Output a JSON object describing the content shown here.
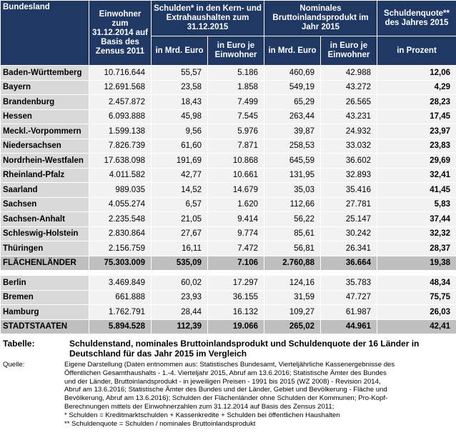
{
  "table": {
    "header": {
      "bundesland": "Bundesland",
      "einwohner": "Einwohner zum 31.12.2014 auf Basis des Zensus 2011",
      "schulden": "Schulden* in den Kern- und Extrahaushalten zum 31.12.2015",
      "schulden_sub": [
        "in Mrd. Euro",
        "in Euro je Einwohner"
      ],
      "bip": "Nominales Bruttoinlandsprodukt im Jahr 2015",
      "bip_sub": [
        "in Mrd. Euro",
        "in Euro je Einwohner"
      ],
      "quote": "Schuldenquote** des Jahres 2015",
      "quote_sub": "in Prozent"
    },
    "groups": [
      {
        "rows": [
          [
            "Baden-Württemberg",
            "10.716.644",
            "55,57",
            "5.186",
            "460,69",
            "42.988",
            "12,06"
          ],
          [
            "Bayern",
            "12.691.568",
            "23,58",
            "1.858",
            "549,19",
            "43.272",
            "4,29"
          ],
          [
            "Brandenburg",
            "2.457.872",
            "18,43",
            "7.499",
            "65,29",
            "26.565",
            "28,23"
          ],
          [
            "Hessen",
            "6.093.888",
            "45,98",
            "7.545",
            "263,44",
            "43.231",
            "17,45"
          ],
          [
            "Meckl.-Vorpommern",
            "1.599.138",
            "9,56",
            "5.976",
            "39,87",
            "24.932",
            "23,97"
          ],
          [
            "Niedersachsen",
            "7.826.739",
            "61,60",
            "7.871",
            "258,53",
            "33.032",
            "23,83"
          ],
          [
            "Nordrhein-Westfalen",
            "17.638.098",
            "191,69",
            "10.868",
            "645,59",
            "36.602",
            "29,69"
          ],
          [
            "Rheinland-Pfalz",
            "4.011.582",
            "42,77",
            "10.661",
            "131,95",
            "32.893",
            "32,41"
          ],
          [
            "Saarland",
            "989.035",
            "14,52",
            "14.679",
            "35,03",
            "35.416",
            "41,45"
          ],
          [
            "Sachsen",
            "4.055.274",
            "6,57",
            "1.620",
            "112,66",
            "27.781",
            "5,83"
          ],
          [
            "Sachsen-Anhalt",
            "2.235.548",
            "21,05",
            "9.414",
            "56,22",
            "25.147",
            "37,44"
          ],
          [
            "Schleswig-Holstein",
            "2.830.864",
            "27,67",
            "9.774",
            "85,61",
            "30.242",
            "32,32"
          ],
          [
            "Thüringen",
            "2.156.759",
            "16,11",
            "7.472",
            "56,81",
            "26.341",
            "28,37"
          ]
        ],
        "total": [
          "FLÄCHENLÄNDER",
          "75.303.009",
          "535,09",
          "7.106",
          "2.760,88",
          "36.664",
          "19,38"
        ]
      },
      {
        "rows": [
          [
            "Berlin",
            "3.469.849",
            "60,02",
            "17.297",
            "124,16",
            "35.783",
            "48,34"
          ],
          [
            "Bremen",
            "661.888",
            "23,93",
            "36.155",
            "31,59",
            "47.727",
            "75,75"
          ],
          [
            "Hamburg",
            "1.762.791",
            "28,44",
            "16.132",
            "109,27",
            "61.987",
            "26,03"
          ]
        ],
        "total": [
          "STADTSTAATEN",
          "5.894.528",
          "112,39",
          "19.066",
          "265,02",
          "44.961",
          "42,41"
        ]
      }
    ]
  },
  "caption": {
    "label": "Tabelle:",
    "text": "Schuldenstand, nominales Bruttoinlandsprodukt und Schuldenquote der 16 Länder in Deutschland für das Jahr 2015 im Vergleich"
  },
  "source": {
    "label": "Quelle:",
    "lines": [
      "Eigene Darstellung (Daten entnommen aus: Statistisches Bundesamt, Vierteljährliche Kassenergebnisse des",
      "Öffentlichen Gesamthaushalts - 1.-4. Vierteljahr 2015, Abruf am 13.6.2016; Statistische Ämter des Bundes",
      "und der Länder, Bruttoinlandsprodukt - in jeweiligen Preisen - 1991 bis 2015 (WZ 2008) - Revision 2014,",
      "Abruf am 13.6.2016; Statistische Ämter des Bundes und der Länder, Gebiet und Bevölkerung - Fläche und",
      "Bevölkerung, Abruf am 13.6.2016); Schulden der Flächenländer ohne Schulden der Kommunen; Pro-Kopf-",
      "Berechnungen mittels der Einwohnerzahlen zum 31.12.2014 auf Basis des Zensus 2011;",
      "* Schulden = Kreditmarktschulden + Kassenkredite + Schulden bei öffentlichen Haushalten",
      "** Schuldenquote = Schulden / nominales Bruttoinlandsprodukt"
    ]
  }
}
